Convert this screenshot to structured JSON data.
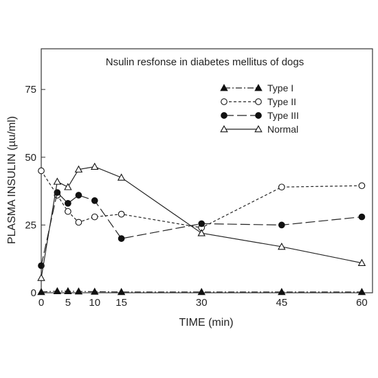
{
  "chart_data": {
    "type": "line",
    "title": "Nsulin resfonse in diabetes mellitus of dogs",
    "xlabel": "TIME (min)",
    "ylabel": "PLASMA INSULIN (µu/ml)",
    "xlim": [
      0,
      62
    ],
    "ylim": [
      0,
      90
    ],
    "xticks": [
      0,
      5,
      10,
      15,
      30,
      45,
      60
    ],
    "yticks": [
      0,
      25,
      50,
      75
    ],
    "x_tick_labels": [
      "0",
      "5",
      "10",
      "15",
      "30",
      "45",
      "60"
    ],
    "y_tick_labels": [
      "0",
      "25",
      "50",
      "75"
    ],
    "grid": false,
    "legend_position": "top-right",
    "series": [
      {
        "name": "Type I",
        "marker": "filled-triangle",
        "line": "dash-dot",
        "x": [
          0,
          3,
          5,
          7,
          10,
          15,
          30,
          45,
          60
        ],
        "y": [
          0.3,
          0.6,
          0.6,
          0.5,
          0.4,
          0.3,
          0.3,
          0.3,
          0.3
        ]
      },
      {
        "name": "Type II",
        "marker": "open-circle",
        "line": "short-dash",
        "x": [
          0,
          3,
          5,
          7,
          10,
          15,
          30,
          45,
          60
        ],
        "y": [
          45,
          36,
          30,
          26,
          28,
          29,
          24,
          39,
          39.5
        ]
      },
      {
        "name": "Type III",
        "marker": "filled-circle",
        "line": "long-dash",
        "x": [
          0,
          3,
          5,
          7,
          10,
          15,
          30,
          45,
          60
        ],
        "y": [
          10,
          37,
          33,
          36,
          34,
          20,
          25.5,
          25,
          28
        ]
      },
      {
        "name": "Normal",
        "marker": "open-triangle",
        "line": "solid",
        "x": [
          0,
          3,
          5,
          7,
          10,
          15,
          30,
          45,
          60
        ],
        "y": [
          5.5,
          41,
          39,
          45.5,
          46.5,
          42.5,
          22,
          17,
          11
        ]
      }
    ]
  }
}
